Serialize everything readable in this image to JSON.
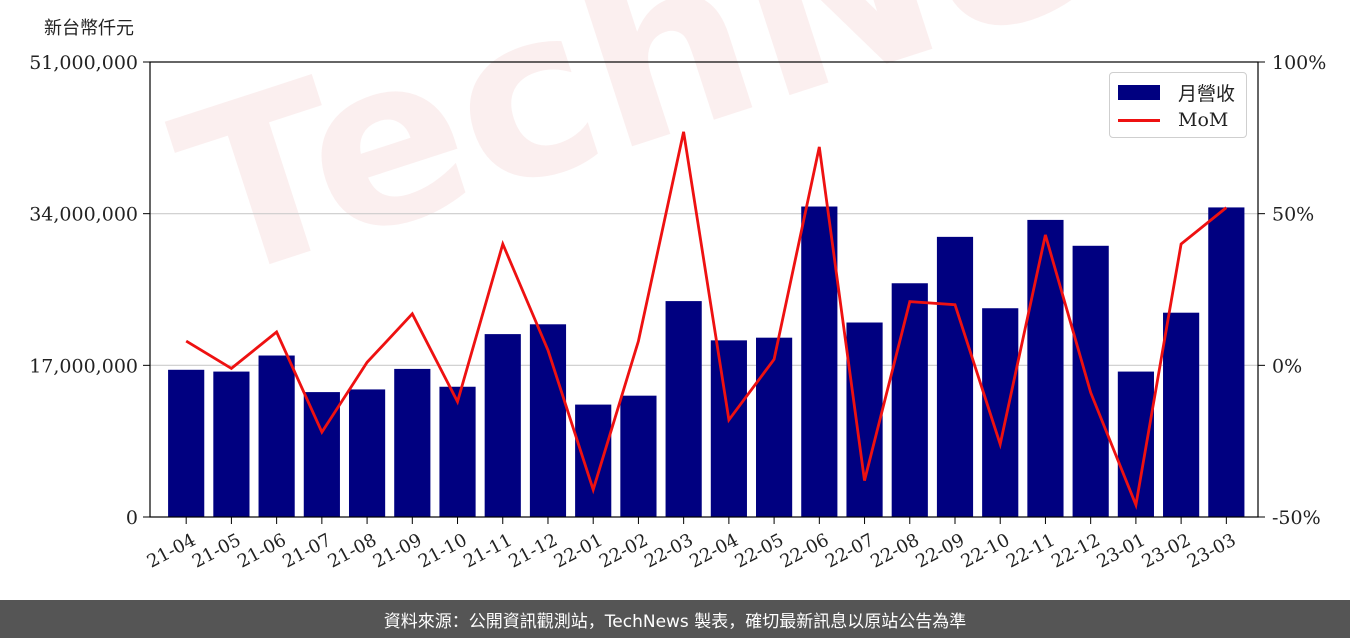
{
  "unit_label": "新台幣仟元",
  "watermark": "TechNews",
  "footer_text": "資料來源：公開資訊觀測站，TechNews 製表，確切最新訊息以原站公告為準",
  "chart_data": {
    "type": "bar",
    "categories": [
      "21-04",
      "21-05",
      "21-06",
      "21-07",
      "21-08",
      "21-09",
      "21-10",
      "21-11",
      "21-12",
      "22-01",
      "22-02",
      "22-03",
      "22-04",
      "22-05",
      "22-06",
      "22-07",
      "22-08",
      "22-09",
      "22-10",
      "22-11",
      "22-12",
      "23-01",
      "23-02",
      "23-03"
    ],
    "series": [
      {
        "name": "月營收",
        "kind": "bar",
        "axis": "left",
        "color": "#000080",
        "values": [
          16500000,
          16300000,
          18100000,
          14000000,
          14300000,
          16600000,
          14600000,
          20500000,
          21600000,
          12600000,
          13600000,
          24200000,
          19800000,
          20100000,
          34800000,
          21800000,
          26200000,
          31400000,
          23400000,
          33300000,
          30400000,
          16300000,
          22900000,
          34700000
        ]
      },
      {
        "name": "MoM",
        "kind": "line",
        "axis": "right",
        "color": "#ee1111",
        "values": [
          8,
          -1,
          11,
          -22,
          1,
          17,
          -12,
          40,
          5,
          -41,
          8,
          77,
          -18,
          2,
          72,
          -38,
          21,
          20,
          -26,
          43,
          -9,
          -46,
          40,
          52
        ]
      }
    ],
    "ylim_left": [
      0,
      51000000
    ],
    "yticks_left": [
      0,
      17000000,
      34000000,
      51000000
    ],
    "ytick_labels_left": [
      "0",
      "17,000,000",
      "34,000,000",
      "51,000,000"
    ],
    "ylim_right": [
      -50,
      100
    ],
    "yticks_right": [
      -50,
      0,
      50,
      100
    ],
    "ytick_labels_right": [
      "-50%",
      "0%",
      "50%",
      "100%"
    ],
    "grid": "horizontal",
    "legend": "top-right"
  }
}
